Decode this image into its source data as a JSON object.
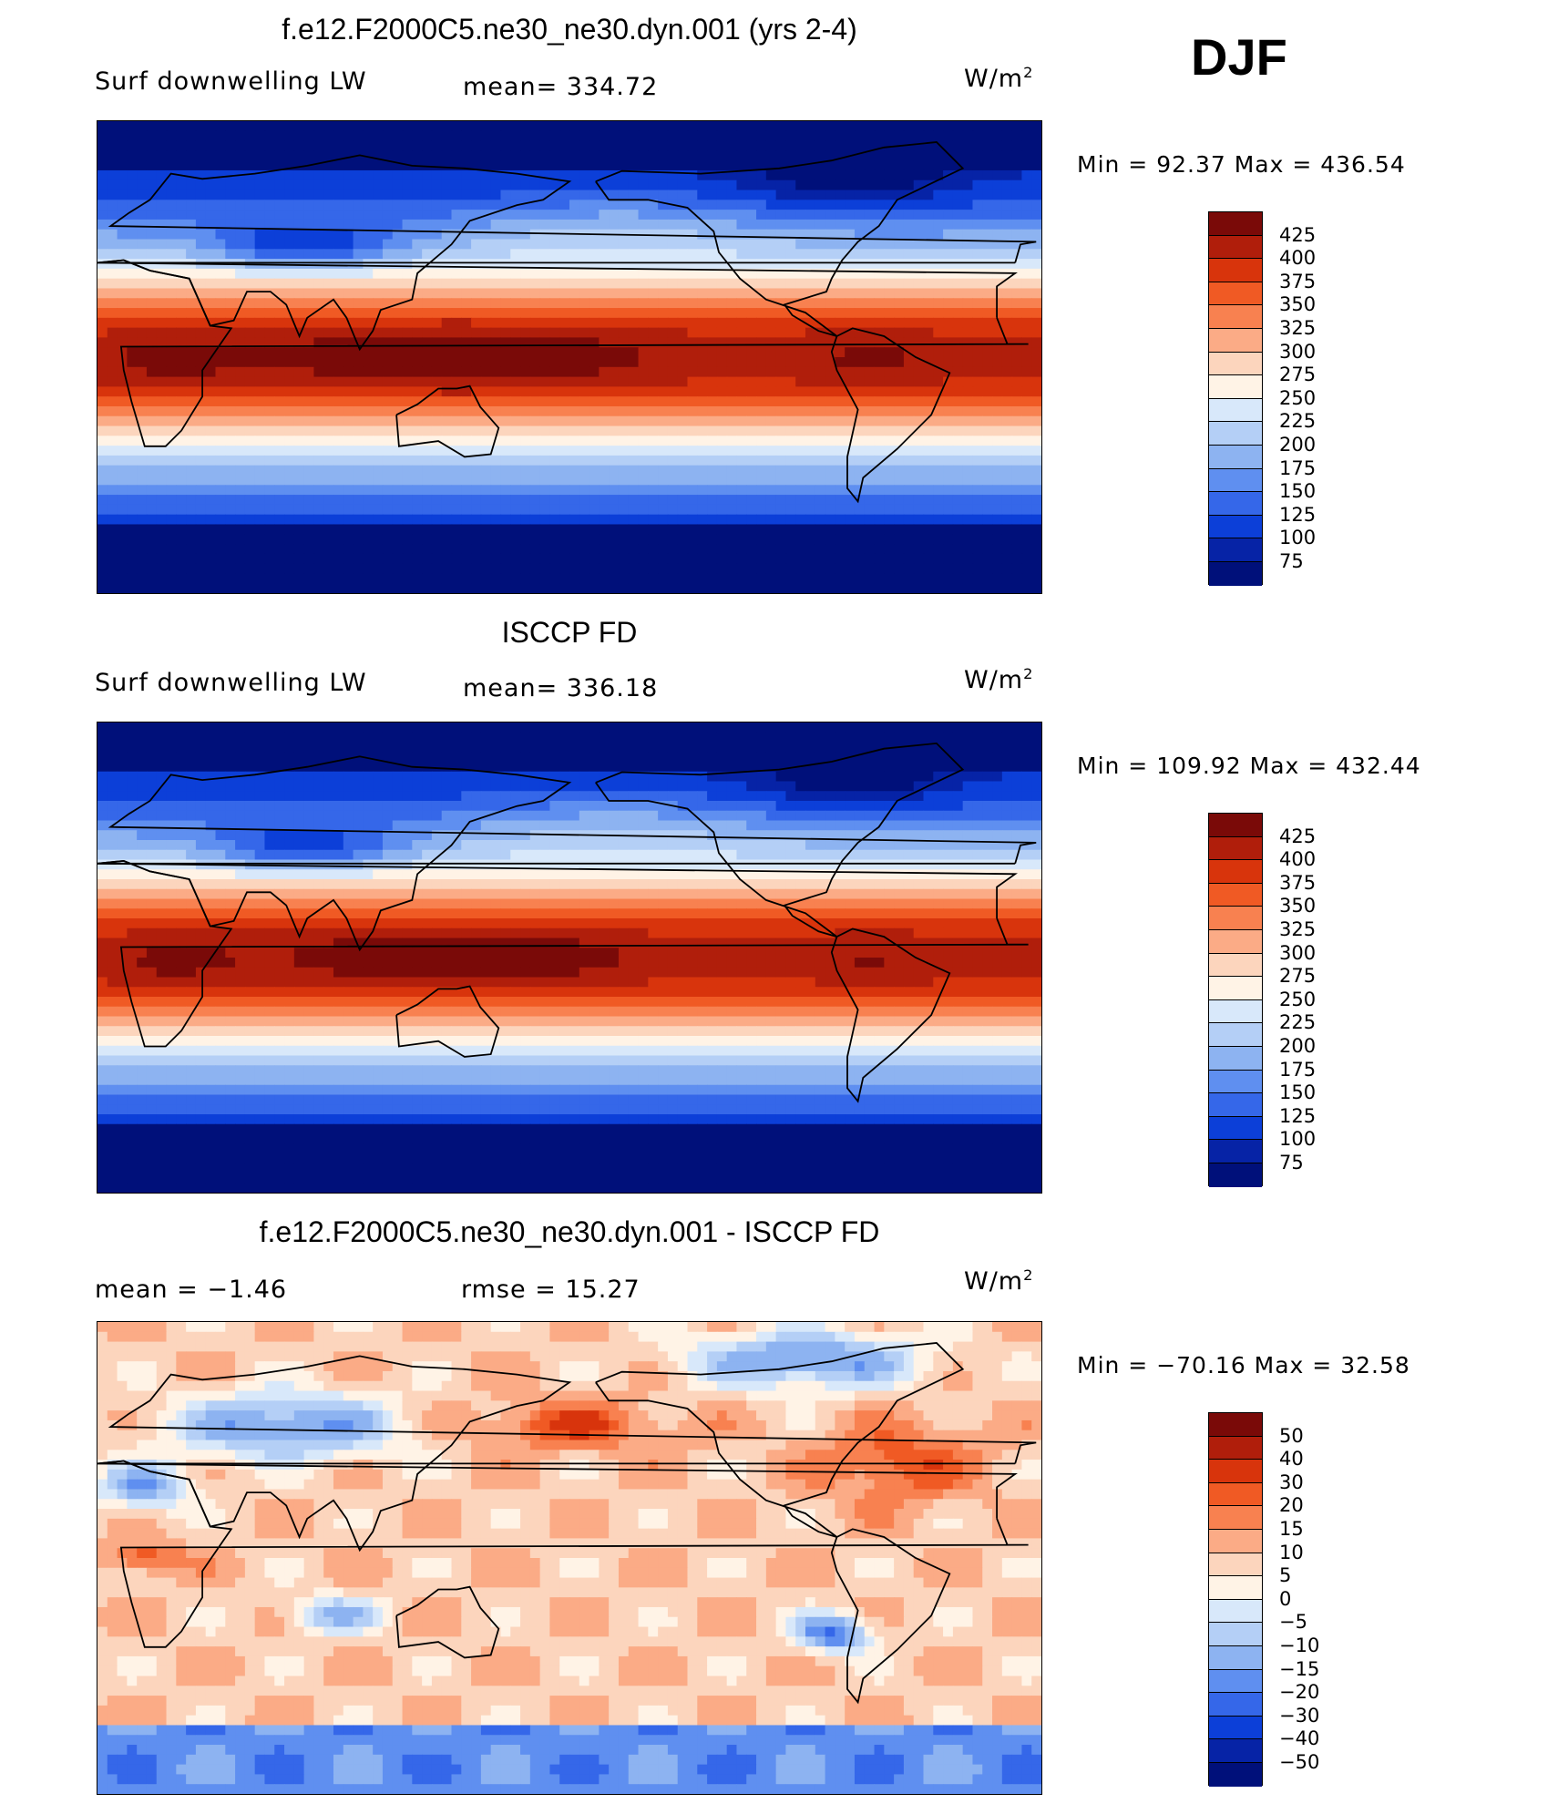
{
  "season": "DJF",
  "panels": [
    {
      "title": "f.e12.F2000C5.ne30_ne30.dyn.001 (yrs 2-4)",
      "left_label": "Surf  downwelling  LW",
      "center_label": "mean=  334.72",
      "units": "W/m",
      "units_sup": "2",
      "minmax": "Min  =    92.37  Max  =  436.54",
      "colorbar_labels": [
        "425",
        "400",
        "375",
        "350",
        "325",
        "300",
        "275",
        "250",
        "225",
        "200",
        "175",
        "150",
        "125",
        "100",
        "75"
      ]
    },
    {
      "title": "ISCCP FD",
      "left_label": "Surf  downwelling  LW",
      "center_label": "mean=  336.18",
      "units": "W/m",
      "units_sup": "2",
      "minmax": "Min  =  109.92  Max  =  432.44",
      "colorbar_labels": [
        "425",
        "400",
        "375",
        "350",
        "325",
        "300",
        "275",
        "250",
        "225",
        "200",
        "175",
        "150",
        "125",
        "100",
        "75"
      ]
    },
    {
      "title": "f.e12.F2000C5.ne30_ne30.dyn.001 - ISCCP FD",
      "left_label": "mean  =     −1.46",
      "center_label": "rmse  =    15.27",
      "units": "W/m",
      "units_sup": "2",
      "minmax": "Min  =  −70.16  Max  =     32.58",
      "colorbar_labels": [
        "50",
        "40",
        "30",
        "20",
        "15",
        "10",
        "5",
        "0",
        "−5",
        "−10",
        "−15",
        "−20",
        "−30",
        "−40",
        "−50"
      ]
    }
  ],
  "colorbar_colors": [
    "#7a0a08",
    "#b01e0b",
    "#d8340c",
    "#f05a24",
    "#f88150",
    "#fbab86",
    "#fcd5bd",
    "#fff3e6",
    "#d8e8fa",
    "#b4cff6",
    "#8db3f1",
    "#5f8ff0",
    "#3567e9",
    "#0c3fd8",
    "#0623a6",
    "#00107a"
  ]
}
